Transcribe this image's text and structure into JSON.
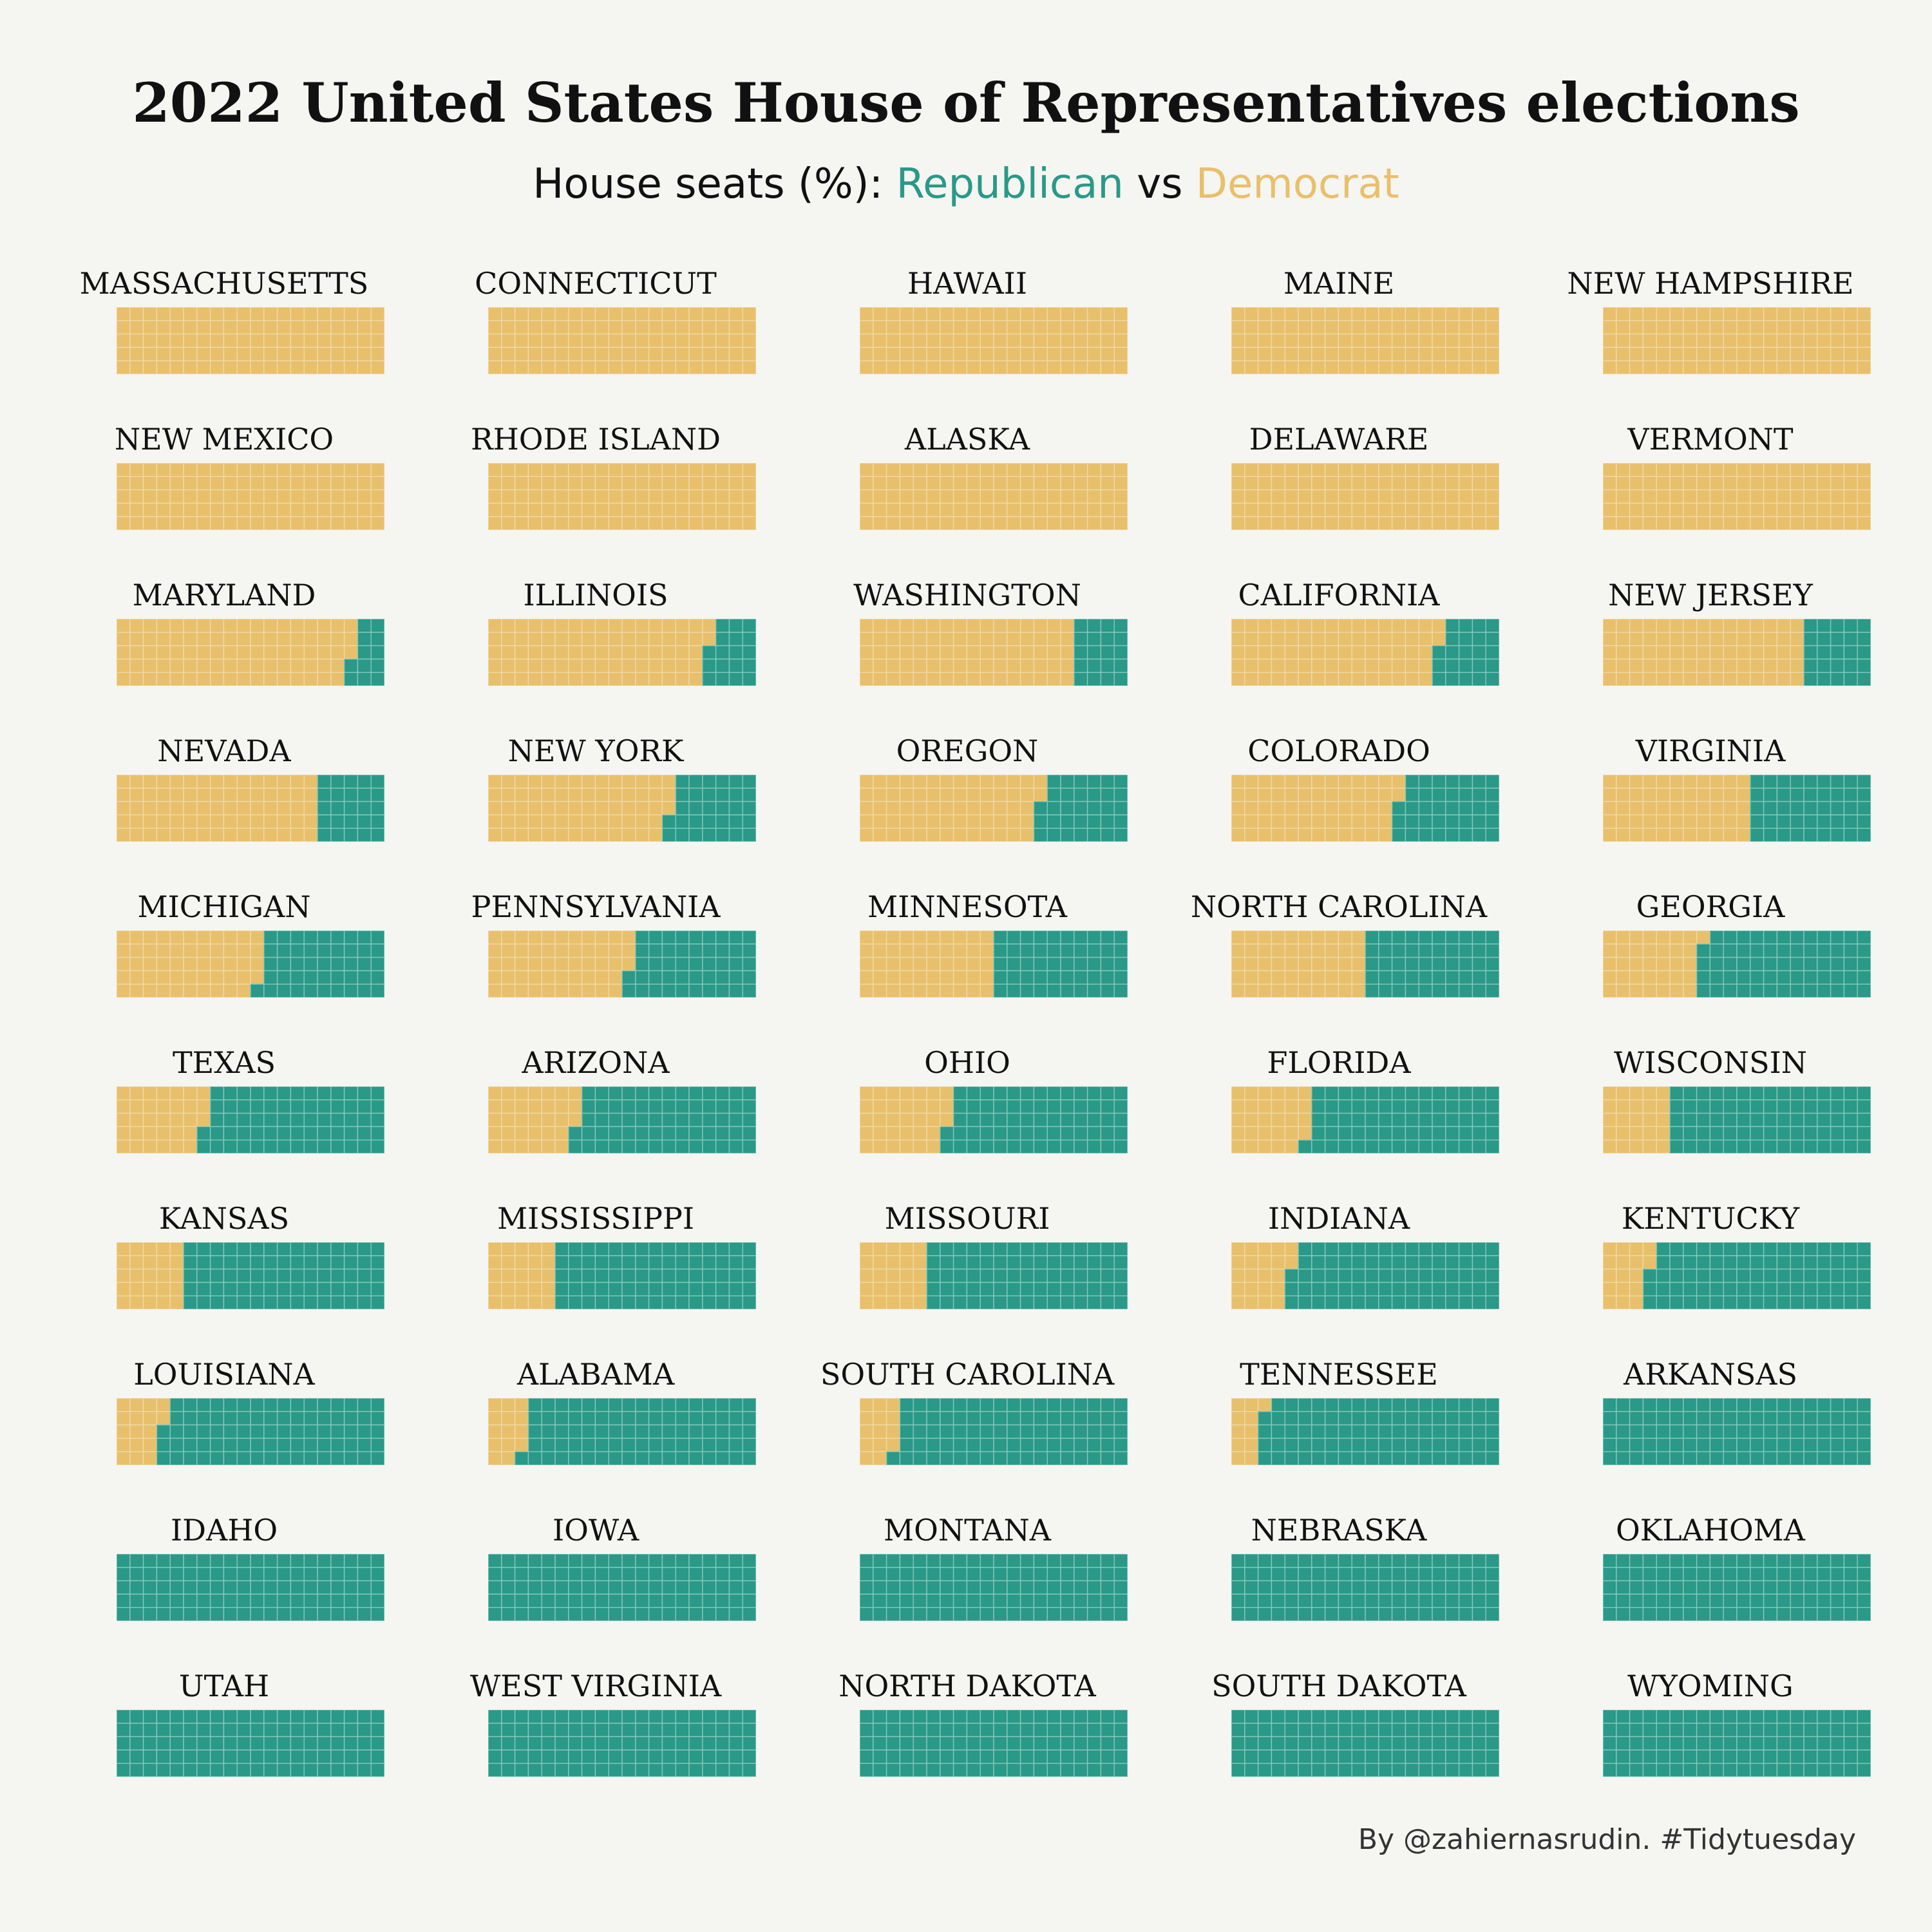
{
  "title": "2022 United States House of Representatives elections",
  "subtitle": {
    "prefix": "House seats (%): ",
    "republican": "Republican",
    "vs": " vs ",
    "democrat": "Democrat"
  },
  "caption": "By @zahiernasrudin. #Tidytuesday",
  "colors": {
    "republican": "#2a9987",
    "democrat": "#e8c06c",
    "background": "#f5f5f2"
  },
  "chart_data": {
    "type": "waffle",
    "grid": "20 columns x 5 rows, 100 cells per state",
    "unit": "House seats (%)",
    "series": [
      {
        "name": "Democrat",
        "key": "dem"
      },
      {
        "name": "Republican",
        "key": "rep"
      }
    ],
    "states": [
      {
        "name": "MASSACHUSETTS",
        "dem": 100,
        "rep": 0
      },
      {
        "name": "CONNECTICUT",
        "dem": 100,
        "rep": 0
      },
      {
        "name": "HAWAII",
        "dem": 100,
        "rep": 0
      },
      {
        "name": "MAINE",
        "dem": 100,
        "rep": 0
      },
      {
        "name": "NEW HAMPSHIRE",
        "dem": 100,
        "rep": 0
      },
      {
        "name": "NEW MEXICO",
        "dem": 100,
        "rep": 0
      },
      {
        "name": "RHODE ISLAND",
        "dem": 100,
        "rep": 0
      },
      {
        "name": "ALASKA",
        "dem": 100,
        "rep": 0
      },
      {
        "name": "DELAWARE",
        "dem": 100,
        "rep": 0
      },
      {
        "name": "VERMONT",
        "dem": 100,
        "rep": 0
      },
      {
        "name": "MARYLAND",
        "dem": 88,
        "rep": 12
      },
      {
        "name": "ILLINOIS",
        "dem": 82,
        "rep": 18
      },
      {
        "name": "WASHINGTON",
        "dem": 80,
        "rep": 20
      },
      {
        "name": "CALIFORNIA",
        "dem": 77,
        "rep": 23
      },
      {
        "name": "NEW JERSEY",
        "dem": 75,
        "rep": 25
      },
      {
        "name": "NEVADA",
        "dem": 75,
        "rep": 25
      },
      {
        "name": "NEW YORK",
        "dem": 68,
        "rep": 32
      },
      {
        "name": "OREGON",
        "dem": 67,
        "rep": 33
      },
      {
        "name": "COLORADO",
        "dem": 62,
        "rep": 38
      },
      {
        "name": "VIRGINIA",
        "dem": 55,
        "rep": 45
      },
      {
        "name": "MICHIGAN",
        "dem": 54,
        "rep": 46
      },
      {
        "name": "PENNSYLVANIA",
        "dem": 53,
        "rep": 47
      },
      {
        "name": "MINNESOTA",
        "dem": 50,
        "rep": 50
      },
      {
        "name": "NORTH CAROLINA",
        "dem": 50,
        "rep": 50
      },
      {
        "name": "GEORGIA",
        "dem": 36,
        "rep": 64
      },
      {
        "name": "TEXAS",
        "dem": 33,
        "rep": 67
      },
      {
        "name": "ARIZONA",
        "dem": 33,
        "rep": 67
      },
      {
        "name": "OHIO",
        "dem": 33,
        "rep": 67
      },
      {
        "name": "FLORIDA",
        "dem": 29,
        "rep": 71
      },
      {
        "name": "WISCONSIN",
        "dem": 25,
        "rep": 75
      },
      {
        "name": "KANSAS",
        "dem": 25,
        "rep": 75
      },
      {
        "name": "MISSISSIPPI",
        "dem": 25,
        "rep": 75
      },
      {
        "name": "MISSOURI",
        "dem": 25,
        "rep": 75
      },
      {
        "name": "INDIANA",
        "dem": 22,
        "rep": 78
      },
      {
        "name": "KENTUCKY",
        "dem": 17,
        "rep": 83
      },
      {
        "name": "LOUISIANA",
        "dem": 17,
        "rep": 83
      },
      {
        "name": "ALABAMA",
        "dem": 14,
        "rep": 86
      },
      {
        "name": "SOUTH CAROLINA",
        "dem": 14,
        "rep": 86
      },
      {
        "name": "TENNESSEE",
        "dem": 11,
        "rep": 89
      },
      {
        "name": "ARKANSAS",
        "dem": 0,
        "rep": 100
      },
      {
        "name": "IDAHO",
        "dem": 0,
        "rep": 100
      },
      {
        "name": "IOWA",
        "dem": 0,
        "rep": 100
      },
      {
        "name": "MONTANA",
        "dem": 0,
        "rep": 100
      },
      {
        "name": "NEBRASKA",
        "dem": 0,
        "rep": 100
      },
      {
        "name": "OKLAHOMA",
        "dem": 0,
        "rep": 100
      },
      {
        "name": "UTAH",
        "dem": 0,
        "rep": 100
      },
      {
        "name": "WEST VIRGINIA",
        "dem": 0,
        "rep": 100
      },
      {
        "name": "NORTH DAKOTA",
        "dem": 0,
        "rep": 100
      },
      {
        "name": "SOUTH DAKOTA",
        "dem": 0,
        "rep": 100
      },
      {
        "name": "WYOMING",
        "dem": 0,
        "rep": 100
      }
    ]
  }
}
